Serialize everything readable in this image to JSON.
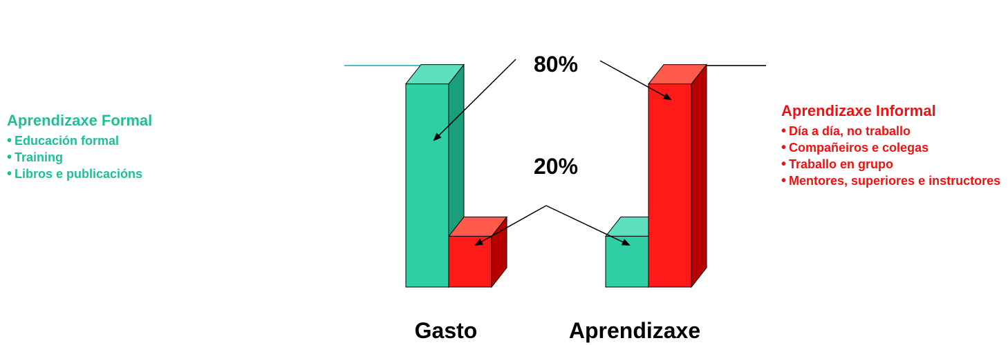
{
  "left_panel": {
    "title": "Aprendizaxe Formal",
    "items": [
      "Educación formal",
      "Training",
      "Libros e publicacións"
    ]
  },
  "right_panel": {
    "title": "Aprendizaxe Informal",
    "items": [
      "Día a día, no traballo",
      "Compañeiros e colegas",
      "Traballo en grupo",
      "Mentores, superiores e instructores"
    ]
  },
  "colors": {
    "formal": "#2ecfa4",
    "informal": "#ff1a1a"
  },
  "chart_data": {
    "type": "bar",
    "categories": [
      "Gasto",
      "Aprendizaxe"
    ],
    "series": [
      {
        "name": "Aprendizaxe Formal",
        "values": [
          80,
          20
        ]
      },
      {
        "name": "Aprendizaxe Informal",
        "values": [
          20,
          80
        ]
      }
    ],
    "ylim": [
      0,
      100
    ],
    "value_labels": [
      "80%",
      "20%"
    ]
  }
}
